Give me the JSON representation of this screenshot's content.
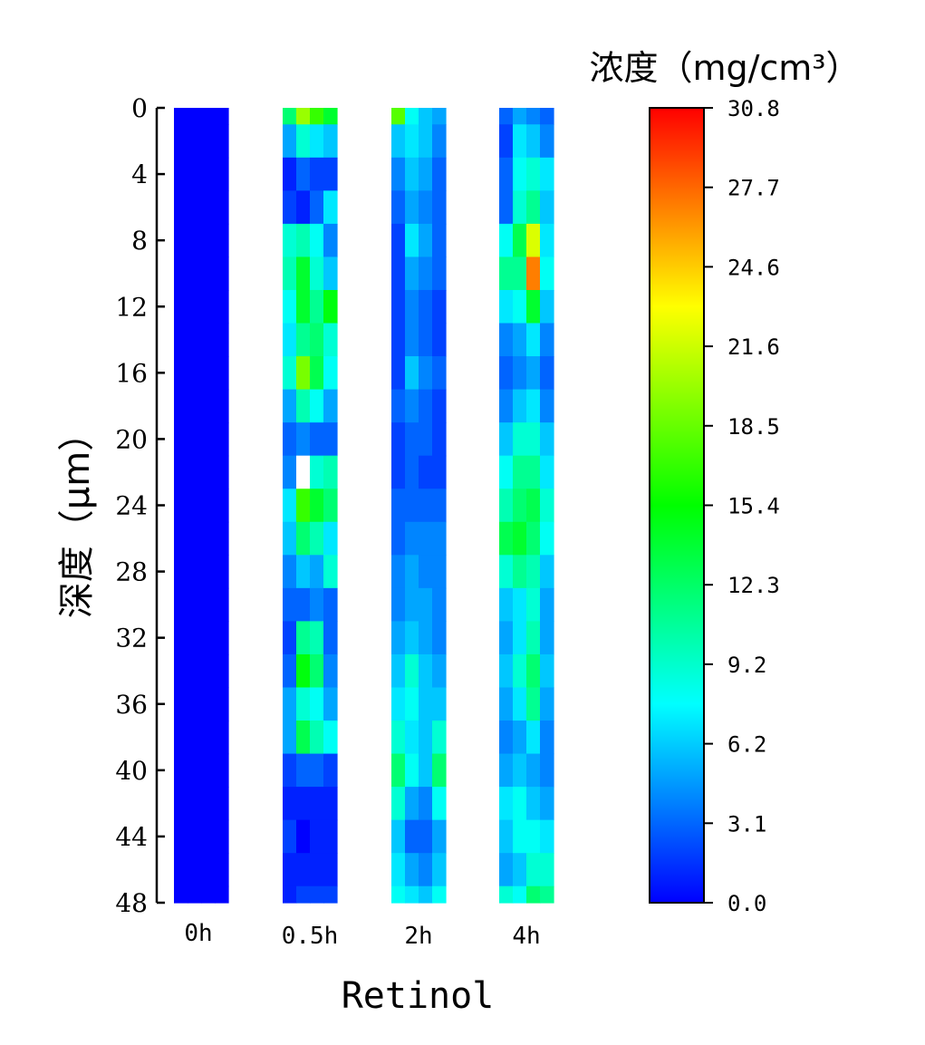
{
  "chart_data": {
    "type": "heatmap",
    "title": "",
    "xlabel": "Retinol",
    "ylabel": "深度（μm）",
    "colorbar_title": "浓度（mg/cm³）",
    "y_ticks": [
      0,
      4,
      8,
      12,
      16,
      20,
      24,
      28,
      32,
      36,
      40,
      44,
      48
    ],
    "ylim": [
      0,
      48
    ],
    "y_inverted": true,
    "depths": [
      0,
      2,
      4,
      6,
      8,
      10,
      12,
      14,
      16,
      18,
      20,
      22,
      24,
      26,
      28,
      30,
      32,
      34,
      36,
      38,
      40,
      42,
      44,
      46,
      48
    ],
    "colorbar": {
      "ticks": [
        "0.0",
        "3.1",
        "6.2",
        "9.2",
        "12.3",
        "15.4",
        "18.5",
        "21.6",
        "24.6",
        "27.7",
        "30.8"
      ],
      "range": [
        0,
        30.8
      ],
      "colors": [
        "#0000ff",
        "#0080ff",
        "#00ffff",
        "#00ff80",
        "#00ff00",
        "#80ff00",
        "#ffff00",
        "#ff8000",
        "#ff0000"
      ]
    },
    "series": [
      {
        "name": "0h",
        "columns": [
          [
            0,
            0,
            0,
            0,
            0,
            0,
            0,
            0,
            0,
            0,
            0,
            0,
            0,
            0,
            0,
            0,
            0,
            0,
            0,
            0,
            0,
            0,
            0,
            0,
            0
          ],
          [
            0,
            0,
            0,
            0,
            0,
            0,
            0,
            0,
            0,
            0,
            0,
            0,
            0,
            0,
            0,
            0,
            0,
            0,
            0,
            0,
            0,
            0,
            0,
            0,
            0
          ],
          [
            0,
            0,
            0,
            0,
            0,
            0,
            0,
            0,
            0,
            0,
            0,
            0,
            0,
            0,
            0,
            0,
            0,
            0,
            0,
            0,
            0,
            0,
            0,
            0,
            0
          ],
          [
            0,
            0,
            0,
            0,
            0,
            0,
            0,
            0,
            0,
            0,
            0,
            0,
            0,
            0,
            0,
            0,
            0,
            0,
            0,
            0,
            0,
            0,
            0,
            0,
            0
          ]
        ]
      },
      {
        "name": "0.5h",
        "columns": [
          [
            12,
            5,
            1,
            2,
            9,
            10,
            8,
            7,
            9,
            5,
            3,
            4,
            7,
            6,
            4,
            3,
            2,
            3,
            5,
            5,
            2,
            1,
            2,
            1,
            1
          ],
          [
            20,
            9,
            3,
            1,
            10,
            14,
            14,
            11,
            19,
            10,
            4,
            null,
            17,
            12,
            6,
            3,
            11,
            15,
            9,
            13,
            3,
            1,
            0,
            1,
            2
          ],
          [
            17,
            7,
            2,
            3,
            8,
            9,
            11,
            12,
            13,
            8,
            3,
            9,
            14,
            10,
            5,
            4,
            10,
            12,
            8,
            10,
            3,
            1,
            1,
            1,
            2
          ],
          [
            14,
            6,
            2,
            7,
            4,
            6,
            15,
            9,
            8,
            5,
            3,
            10,
            12,
            7,
            9,
            3,
            3,
            4,
            5,
            8,
            2,
            1,
            1,
            1,
            2
          ]
        ]
      },
      {
        "name": "2h",
        "columns": [
          [
            18,
            6,
            4,
            3,
            2,
            2,
            2,
            2,
            2,
            3,
            2,
            2,
            3,
            3,
            4,
            4,
            5,
            6,
            7,
            9,
            12,
            9,
            6,
            7,
            8
          ],
          [
            8,
            7,
            6,
            5,
            7,
            5,
            4,
            4,
            6,
            4,
            3,
            3,
            3,
            4,
            5,
            5,
            6,
            9,
            8,
            7,
            8,
            5,
            3,
            5,
            7
          ],
          [
            6,
            6,
            5,
            4,
            5,
            4,
            3,
            3,
            4,
            3,
            3,
            2,
            3,
            4,
            4,
            5,
            5,
            6,
            6,
            6,
            6,
            4,
            3,
            4,
            6
          ],
          [
            5,
            4,
            3,
            3,
            3,
            3,
            2,
            2,
            3,
            2,
            2,
            2,
            3,
            4,
            4,
            4,
            4,
            5,
            6,
            9,
            12,
            8,
            5,
            6,
            8
          ]
        ]
      },
      {
        "name": "4h",
        "columns": [
          [
            3,
            2,
            3,
            3,
            8,
            11,
            7,
            4,
            3,
            4,
            6,
            8,
            10,
            13,
            9,
            6,
            5,
            6,
            5,
            4,
            5,
            7,
            6,
            5,
            9
          ],
          [
            5,
            7,
            8,
            9,
            13,
            11,
            8,
            5,
            4,
            6,
            9,
            11,
            12,
            14,
            11,
            7,
            7,
            9,
            7,
            5,
            6,
            8,
            8,
            6,
            8
          ],
          [
            4,
            6,
            9,
            11,
            22,
            27,
            14,
            7,
            5,
            7,
            9,
            11,
            13,
            12,
            10,
            9,
            10,
            12,
            11,
            7,
            5,
            6,
            8,
            9,
            12
          ],
          [
            3,
            4,
            7,
            6,
            7,
            8,
            6,
            4,
            3,
            4,
            6,
            7,
            9,
            8,
            6,
            5,
            5,
            6,
            5,
            4,
            4,
            5,
            7,
            9,
            11
          ]
        ]
      }
    ]
  }
}
